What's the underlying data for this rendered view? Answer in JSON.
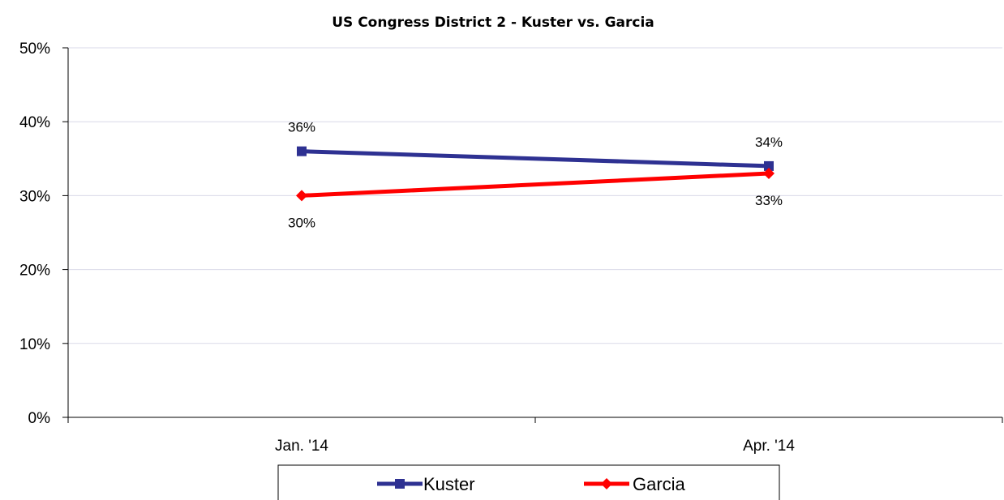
{
  "chart_data": {
    "type": "line",
    "title": "US Congress District 2 - Kuster vs. Garcia",
    "xlabel": "",
    "ylabel": "",
    "categories": [
      "Jan. '14",
      "Apr. '14"
    ],
    "y_ticks": [
      "0%",
      "10%",
      "20%",
      "30%",
      "40%",
      "50%"
    ],
    "ylim": [
      0,
      50
    ],
    "grid": true,
    "legend_position": "bottom",
    "series": [
      {
        "name": "Kuster",
        "values": [
          36,
          34
        ],
        "labels": [
          "36%",
          "34%"
        ],
        "color": "#2E3192",
        "marker": "square",
        "label_position": [
          "above",
          "above"
        ]
      },
      {
        "name": "Garcia",
        "values": [
          30,
          33
        ],
        "labels": [
          "30%",
          "33%"
        ],
        "color": "#FF0000",
        "marker": "diamond",
        "label_position": [
          "below",
          "below"
        ]
      }
    ]
  }
}
